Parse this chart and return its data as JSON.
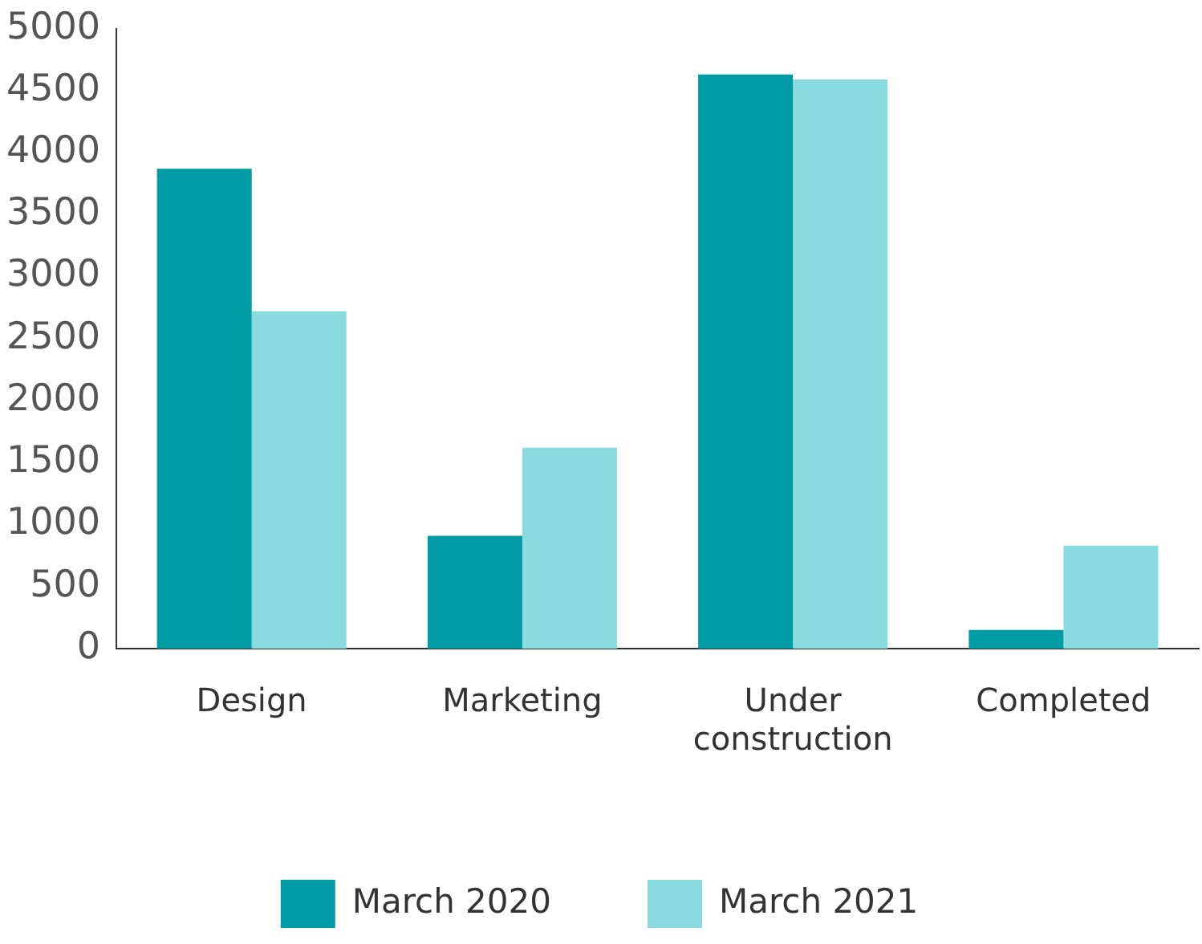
{
  "chart_data": {
    "type": "bar",
    "categories": [
      "Design",
      "Marketing",
      "Under construction",
      "Completed"
    ],
    "series": [
      {
        "name": "March 2020",
        "color": "#009ba5",
        "values": [
          3870,
          910,
          4630,
          150
        ]
      },
      {
        "name": "March 2021",
        "color": "#8adbdf",
        "values": [
          2720,
          1620,
          4590,
          830
        ]
      }
    ],
    "ylim": [
      0,
      5000
    ],
    "yticks": [
      0,
      500,
      1000,
      1500,
      2000,
      2500,
      3000,
      3500,
      4000,
      4500,
      5000
    ],
    "grid": false,
    "legend": "bottom"
  }
}
